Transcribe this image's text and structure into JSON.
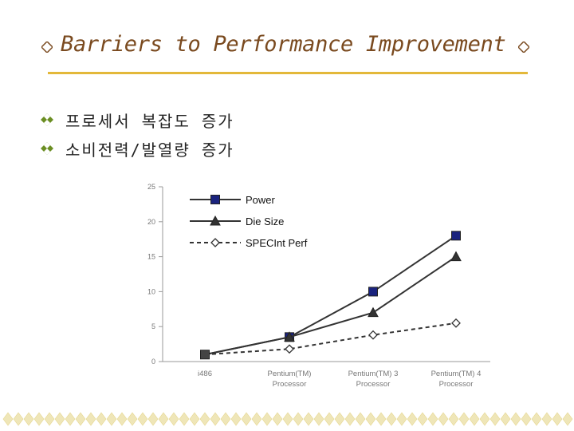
{
  "slide": {
    "title": "Barriers to Performance Improvement",
    "bullets": [
      {
        "text": "프로세서 복잡도 증가"
      },
      {
        "text": "소비전력/발열량 증가"
      }
    ],
    "colors": {
      "accent": "#e3b83a",
      "title": "#7a4a1f",
      "bullet": "#6b8e23",
      "footer": "#efe6b8"
    },
    "icons": {
      "bullet": "checkered-diamond-icon",
      "title": "diamond-icon"
    }
  },
  "chart_data": {
    "type": "line",
    "categories": [
      "i486",
      "Pentium(TM)\nProcessor",
      "Pentium(TM) 3\nProcessor",
      "Pentium(TM) 4\nProcessor"
    ],
    "ylim": [
      0,
      25
    ],
    "yticks": [
      0,
      5,
      10,
      15,
      20,
      25
    ],
    "legend": "top-left",
    "grid": false,
    "series": [
      {
        "name": "Power",
        "values": [
          1,
          3.5,
          10,
          18
        ],
        "marker": "square",
        "line": "solid",
        "markerColor": "#1a237e"
      },
      {
        "name": "Die Size",
        "values": [
          1,
          3.5,
          7,
          15
        ],
        "marker": "triangle",
        "line": "solid",
        "markerColor": "#333333"
      },
      {
        "name": "SPECInt Perf",
        "values": [
          1,
          1.8,
          3.8,
          5.5
        ],
        "marker": "diamond",
        "line": "dashed",
        "markerColor": "#ffffff"
      }
    ]
  }
}
